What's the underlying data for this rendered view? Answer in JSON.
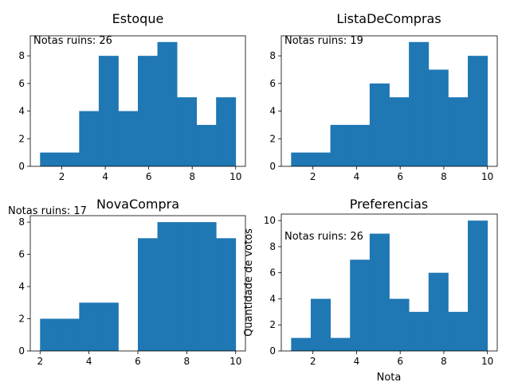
{
  "chart_data": [
    {
      "type": "bar",
      "title": "Estoque",
      "annotation": "Notas ruins: 26",
      "xlabel": "",
      "ylabel": "",
      "xlim": [
        0.55,
        10.45
      ],
      "ylim": [
        0,
        9.45
      ],
      "xticks": [
        2,
        4,
        6,
        8,
        10
      ],
      "yticks": [
        0,
        2,
        4,
        6,
        8
      ],
      "bin_edges": [
        1.0,
        1.9,
        2.8,
        3.7,
        4.6,
        5.5,
        6.4,
        7.3,
        8.2,
        9.1,
        10.0
      ],
      "values": [
        1,
        1,
        4,
        8,
        4,
        8,
        9,
        5,
        3,
        5
      ],
      "color": "#1f77b4"
    },
    {
      "type": "bar",
      "title": "ListaDeCompras",
      "annotation": "Notas ruins: 19",
      "xlabel": "",
      "ylabel": "",
      "xlim": [
        0.55,
        10.45
      ],
      "ylim": [
        0,
        9.45
      ],
      "xticks": [
        2,
        4,
        6,
        8,
        10
      ],
      "yticks": [
        0,
        2,
        4,
        6,
        8
      ],
      "bin_edges": [
        1.0,
        1.9,
        2.8,
        3.7,
        4.6,
        5.5,
        6.4,
        7.3,
        8.2,
        9.1,
        10.0
      ],
      "values": [
        1,
        1,
        3,
        3,
        6,
        5,
        9,
        7,
        5,
        8
      ],
      "color": "#1f77b4"
    },
    {
      "type": "bar",
      "title": "NovaCompra",
      "annotation": "Notas ruins: 17",
      "xlabel": "",
      "ylabel": "",
      "xlim": [
        1.6,
        10.4
      ],
      "ylim": [
        0,
        8.4
      ],
      "xticks": [
        2,
        4,
        6,
        8,
        10
      ],
      "yticks": [
        0,
        2,
        4,
        6,
        8
      ],
      "bin_edges": [
        2.0,
        2.8,
        3.6,
        4.4,
        5.2,
        6.0,
        6.8,
        7.6,
        8.4,
        9.2,
        10.0
      ],
      "values": [
        2,
        2,
        3,
        3,
        0,
        7,
        8,
        8,
        8,
        7
      ],
      "color": "#1f77b4"
    },
    {
      "type": "bar",
      "title": "Preferencias",
      "annotation": "Notas ruins: 26",
      "xlabel": "Nota",
      "ylabel": "Quantidade de votos",
      "xlim": [
        0.55,
        10.45
      ],
      "ylim": [
        0,
        10.5
      ],
      "xticks": [
        2,
        4,
        6,
        8,
        10
      ],
      "yticks": [
        0,
        2,
        4,
        6,
        8,
        10
      ],
      "bin_edges": [
        1.0,
        1.9,
        2.8,
        3.7,
        4.6,
        5.5,
        6.4,
        7.3,
        8.2,
        9.1,
        10.0
      ],
      "values": [
        1,
        4,
        1,
        7,
        9,
        4,
        3,
        6,
        3,
        10
      ],
      "color": "#1f77b4"
    }
  ]
}
